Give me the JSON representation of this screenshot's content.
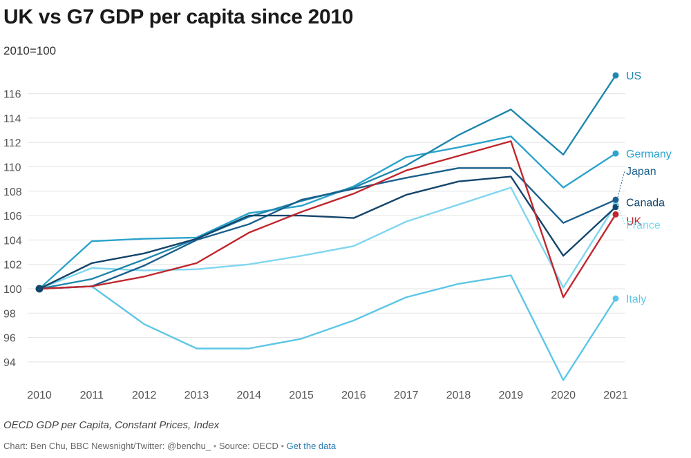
{
  "title": "UK vs G7 GDP per capita since 2010",
  "subtitle": "2010=100",
  "footer": {
    "note": "OECD GDP per Capita, Constant Prices, Index",
    "credit": "Chart: Ben Chu, BBC Newsnight/Twitter: @benchu_",
    "source": "Source: OECD",
    "link": "Get the data",
    "separator": "•"
  },
  "chart_data": {
    "type": "line",
    "title": "UK vs G7 GDP per capita since 2010",
    "subtitle": "2010=100",
    "xlabel": "",
    "ylabel": "",
    "ylim": [
      92,
      118
    ],
    "grid": true,
    "x": [
      "2010",
      "2011",
      "2012",
      "2013",
      "2014",
      "2015",
      "2016",
      "2017",
      "2018",
      "2019",
      "2020",
      "2021"
    ],
    "yticks": [
      94,
      96,
      98,
      100,
      102,
      104,
      106,
      108,
      110,
      112,
      114,
      116
    ],
    "series": [
      {
        "name": "US",
        "color": "#1f86ad",
        "values": [
          100,
          100.8,
          102.4,
          104.1,
          105.9,
          107.2,
          108.3,
          110.1,
          112.6,
          114.7,
          111.0,
          117.5
        ]
      },
      {
        "name": "Germany",
        "color": "#2ba3cc",
        "values": [
          100,
          103.9,
          104.1,
          104.2,
          106.2,
          106.8,
          108.4,
          110.8,
          111.6,
          112.5,
          108.3,
          111.1
        ]
      },
      {
        "name": "Japan",
        "color": "#1b5f8c",
        "values": [
          100,
          100.2,
          101.9,
          104.0,
          105.3,
          107.3,
          108.2,
          109.1,
          109.9,
          109.9,
          105.4,
          107.3
        ]
      },
      {
        "name": "Canada",
        "color": "#14456b",
        "values": [
          100,
          102.1,
          102.9,
          104.1,
          106.0,
          106.0,
          105.8,
          107.7,
          108.8,
          109.2,
          102.7,
          106.7
        ]
      },
      {
        "name": "UK",
        "color": "#c0262d",
        "values": [
          100,
          100.2,
          101.0,
          102.1,
          104.6,
          106.3,
          107.8,
          109.7,
          110.9,
          112.1,
          99.3,
          106.1
        ]
      },
      {
        "name": "France",
        "color": "#7fd6ef",
        "values": [
          100,
          101.7,
          101.5,
          101.6,
          102.0,
          102.7,
          103.5,
          105.5,
          106.9,
          108.3,
          100.1,
          106.9
        ]
      },
      {
        "name": "Italy",
        "color": "#5cc6e6",
        "values": [
          100,
          100.2,
          97.1,
          95.1,
          95.1,
          95.9,
          97.4,
          99.3,
          100.4,
          101.1,
          92.5,
          99.2
        ]
      }
    ]
  }
}
